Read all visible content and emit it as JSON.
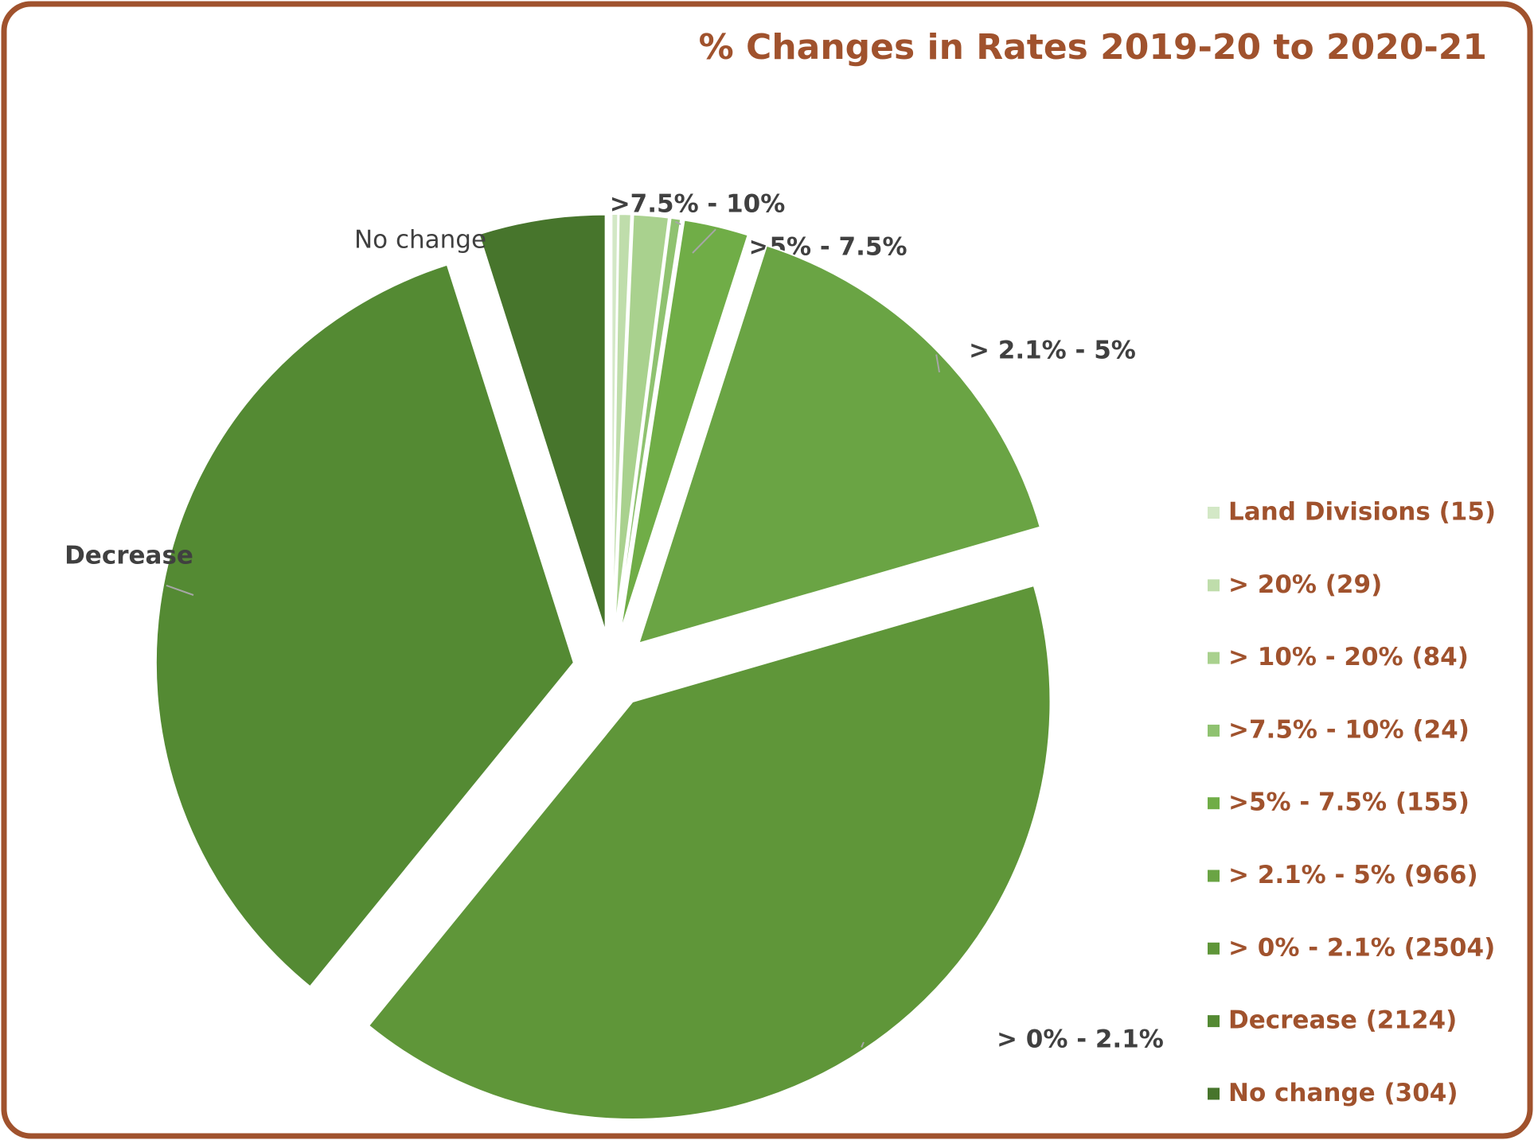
{
  "chart_data": {
    "type": "pie",
    "title": "% Changes in Rates 2019-20 to 2020-21",
    "categories": [
      "Land Divisions (15)",
      "> 20% (29)",
      "> 10%  - 20% (84)",
      ">7.5%  - 10% (24)",
      ">5%  - 7.5% (155)",
      "> 2.1%  - 5% (966)",
      "> 0%  -  2.1% (2504)",
      "Decrease (2124)",
      "No change (304)"
    ],
    "values": [
      15,
      29,
      84,
      24,
      155,
      966,
      2504,
      2124,
      304
    ],
    "data_labels": [
      null,
      null,
      null,
      ">7.5% - 10%",
      ">5% - 7.5%",
      "> 2.1% - 5%",
      "> 0% - 2.1%",
      "Decrease",
      "No change"
    ],
    "colors": [
      "#d3e8c6",
      "#bfddab",
      "#a9d18e",
      "#8fc270",
      "#70ad47",
      "#6aa444",
      "#5f9639",
      "#548a33",
      "#47752c"
    ],
    "explode": true,
    "legend": "right"
  }
}
